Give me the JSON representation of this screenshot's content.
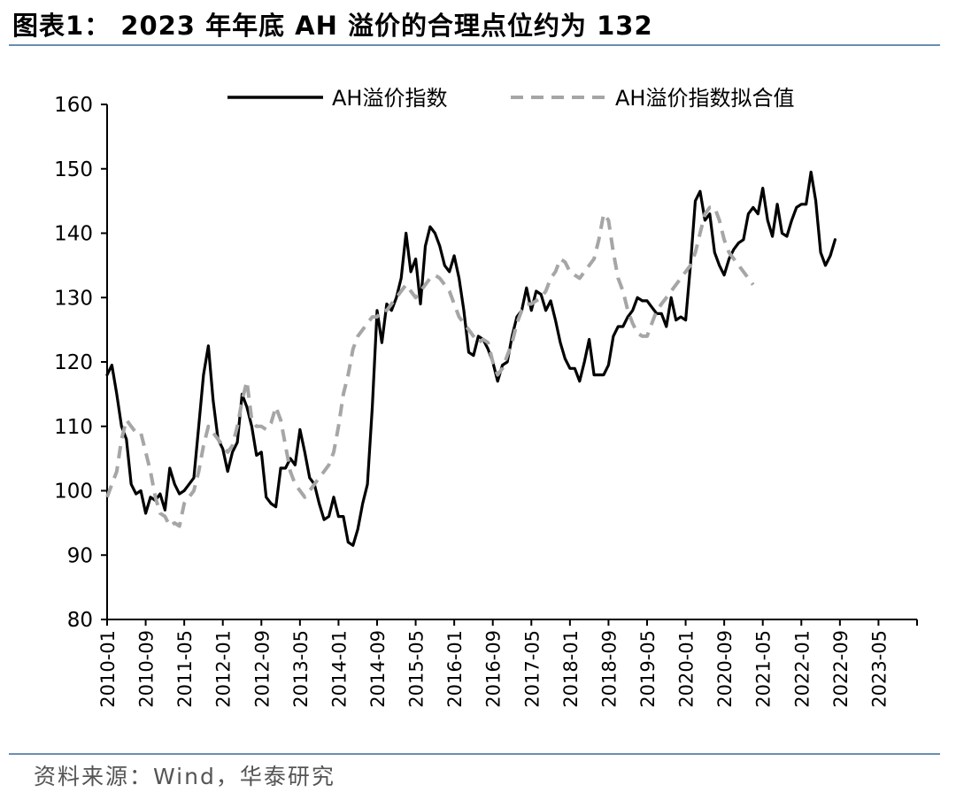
{
  "header": {
    "title": "图表1： 2023 年年底 AH 溢价的合理点位约为 132"
  },
  "footer": {
    "source": "资料来源：Wind，华泰研究"
  },
  "chart_data": {
    "type": "line",
    "title": "图表1： 2023 年年底 AH 溢价的合理点位约为 132",
    "ylim": [
      80,
      160
    ],
    "yticks": [
      80,
      90,
      100,
      110,
      120,
      130,
      140,
      150,
      160
    ],
    "xlim": [
      "2010-01",
      "2024-01"
    ],
    "xticks": [
      "2010-01",
      "2010-09",
      "2011-05",
      "2012-01",
      "2012-09",
      "2013-05",
      "2014-01",
      "2014-09",
      "2015-05",
      "2016-01",
      "2016-09",
      "2017-05",
      "2018-01",
      "2018-09",
      "2019-05",
      "2020-01",
      "2020-09",
      "2021-05",
      "2022-01",
      "2022-09",
      "2023-05"
    ],
    "legend_position": "top-center",
    "grid": false,
    "colors": {
      "actual": "#000000",
      "fitted": "#a6a6a6",
      "axis": "#000000",
      "rule": "#6a8eb3"
    },
    "series": [
      {
        "name": "AH溢价指数",
        "style": "solid",
        "points": [
          [
            "2010-01",
            118
          ],
          [
            "2010-02",
            119.5
          ],
          [
            "2010-03",
            115
          ],
          [
            "2010-04",
            110
          ],
          [
            "2010-05",
            108
          ],
          [
            "2010-06",
            101
          ],
          [
            "2010-07",
            99.5
          ],
          [
            "2010-08",
            100
          ],
          [
            "2010-09",
            96.5
          ],
          [
            "2010-10",
            99
          ],
          [
            "2010-11",
            98.5
          ],
          [
            "2010-12",
            99.5
          ],
          [
            "2011-01",
            97
          ],
          [
            "2011-02",
            103.5
          ],
          [
            "2011-03",
            101
          ],
          [
            "2011-04",
            99.5
          ],
          [
            "2011-05",
            100
          ],
          [
            "2011-06",
            101
          ],
          [
            "2011-07",
            102
          ],
          [
            "2011-08",
            110
          ],
          [
            "2011-09",
            118
          ],
          [
            "2011-10",
            122.5
          ],
          [
            "2011-11",
            114
          ],
          [
            "2011-12",
            108
          ],
          [
            "2012-01",
            106.5
          ],
          [
            "2012-02",
            103
          ],
          [
            "2012-03",
            106
          ],
          [
            "2012-04",
            107.5
          ],
          [
            "2012-05",
            115
          ],
          [
            "2012-06",
            113
          ],
          [
            "2012-07",
            110
          ],
          [
            "2012-08",
            105.5
          ],
          [
            "2012-09",
            106
          ],
          [
            "2012-10",
            99
          ],
          [
            "2012-11",
            98
          ],
          [
            "2012-12",
            97.5
          ],
          [
            "2013-01",
            103.5
          ],
          [
            "2013-02",
            103.5
          ],
          [
            "2013-03",
            105
          ],
          [
            "2013-04",
            104
          ],
          [
            "2013-05",
            109.5
          ],
          [
            "2013-06",
            106
          ],
          [
            "2013-07",
            102
          ],
          [
            "2013-08",
            101
          ],
          [
            "2013-09",
            98
          ],
          [
            "2013-10",
            95.5
          ],
          [
            "2013-11",
            96
          ],
          [
            "2013-12",
            99
          ],
          [
            "2014-01",
            96
          ],
          [
            "2014-02",
            96
          ],
          [
            "2014-03",
            92
          ],
          [
            "2014-04",
            91.5
          ],
          [
            "2014-05",
            94
          ],
          [
            "2014-06",
            98
          ],
          [
            "2014-07",
            101
          ],
          [
            "2014-08",
            113
          ],
          [
            "2014-09",
            128
          ],
          [
            "2014-10",
            123
          ],
          [
            "2014-11",
            129
          ],
          [
            "2014-12",
            128
          ],
          [
            "2015-01",
            130
          ],
          [
            "2015-02",
            133
          ],
          [
            "2015-03",
            140
          ],
          [
            "2015-04",
            134
          ],
          [
            "2015-05",
            136
          ],
          [
            "2015-06",
            129
          ],
          [
            "2015-07",
            138
          ],
          [
            "2015-08",
            141
          ],
          [
            "2015-09",
            140
          ],
          [
            "2015-10",
            138
          ],
          [
            "2015-11",
            135
          ],
          [
            "2015-12",
            134
          ],
          [
            "2016-01",
            136.5
          ],
          [
            "2016-02",
            133
          ],
          [
            "2016-03",
            128
          ],
          [
            "2016-04",
            121.5
          ],
          [
            "2016-05",
            121
          ],
          [
            "2016-06",
            124
          ],
          [
            "2016-07",
            123.5
          ],
          [
            "2016-08",
            122
          ],
          [
            "2016-09",
            120
          ],
          [
            "2016-10",
            117
          ],
          [
            "2016-11",
            119.5
          ],
          [
            "2016-12",
            120
          ],
          [
            "2017-01",
            124
          ],
          [
            "2017-02",
            127
          ],
          [
            "2017-03",
            128
          ],
          [
            "2017-04",
            131.5
          ],
          [
            "2017-05",
            128
          ],
          [
            "2017-06",
            131
          ],
          [
            "2017-07",
            130.5
          ],
          [
            "2017-08",
            128
          ],
          [
            "2017-09",
            129.5
          ],
          [
            "2017-10",
            126.5
          ],
          [
            "2017-11",
            123
          ],
          [
            "2017-12",
            120.5
          ],
          [
            "2018-01",
            119
          ],
          [
            "2018-02",
            119
          ],
          [
            "2018-03",
            117
          ],
          [
            "2018-04",
            120
          ],
          [
            "2018-05",
            123.5
          ],
          [
            "2018-06",
            118
          ],
          [
            "2018-07",
            118
          ],
          [
            "2018-08",
            118
          ],
          [
            "2018-09",
            119.5
          ],
          [
            "2018-10",
            124
          ],
          [
            "2018-11",
            125.5
          ],
          [
            "2018-12",
            125.5
          ],
          [
            "2019-01",
            127
          ],
          [
            "2019-02",
            128
          ],
          [
            "2019-03",
            130
          ],
          [
            "2019-04",
            129.5
          ],
          [
            "2019-05",
            129.5
          ],
          [
            "2019-06",
            128.5
          ],
          [
            "2019-07",
            127.5
          ],
          [
            "2019-08",
            127.5
          ],
          [
            "2019-09",
            125.5
          ],
          [
            "2019-10",
            130
          ],
          [
            "2019-11",
            126.5
          ],
          [
            "2019-12",
            127
          ],
          [
            "2020-01",
            126.5
          ],
          [
            "2020-02",
            135
          ],
          [
            "2020-03",
            145
          ],
          [
            "2020-04",
            146.5
          ],
          [
            "2020-05",
            142
          ],
          [
            "2020-06",
            143
          ],
          [
            "2020-07",
            137
          ],
          [
            "2020-08",
            135
          ],
          [
            "2020-09",
            133.5
          ],
          [
            "2020-10",
            136
          ],
          [
            "2020-11",
            137.5
          ],
          [
            "2020-12",
            138.5
          ],
          [
            "2021-01",
            139
          ],
          [
            "2021-02",
            143
          ],
          [
            "2021-03",
            144
          ],
          [
            "2021-04",
            143
          ],
          [
            "2021-05",
            147
          ],
          [
            "2021-06",
            142
          ],
          [
            "2021-07",
            139.5
          ],
          [
            "2021-08",
            144.5
          ],
          [
            "2021-09",
            140
          ],
          [
            "2021-10",
            139.5
          ],
          [
            "2021-11",
            142
          ],
          [
            "2021-12",
            144
          ],
          [
            "2022-01",
            144.5
          ],
          [
            "2022-02",
            144.5
          ],
          [
            "2022-03",
            149.5
          ],
          [
            "2022-04",
            145
          ],
          [
            "2022-05",
            137
          ],
          [
            "2022-06",
            135
          ],
          [
            "2022-07",
            136.5
          ],
          [
            "2022-08",
            139
          ]
        ]
      },
      {
        "name": "AH溢价指数拟合值",
        "style": "dashed",
        "points": [
          [
            "2010-01",
            99
          ],
          [
            "2010-02",
            101
          ],
          [
            "2010-03",
            103
          ],
          [
            "2010-04",
            108
          ],
          [
            "2010-05",
            111
          ],
          [
            "2010-06",
            110
          ],
          [
            "2010-07",
            109
          ],
          [
            "2010-08",
            109
          ],
          [
            "2010-09",
            106
          ],
          [
            "2010-10",
            103
          ],
          [
            "2010-11",
            99
          ],
          [
            "2010-12",
            96.5
          ],
          [
            "2011-01",
            96
          ],
          [
            "2011-02",
            94.5
          ],
          [
            "2011-03",
            95
          ],
          [
            "2011-04",
            94.5
          ],
          [
            "2011-05",
            98
          ],
          [
            "2011-06",
            99
          ],
          [
            "2011-07",
            100
          ],
          [
            "2011-08",
            103
          ],
          [
            "2011-09",
            107
          ],
          [
            "2011-10",
            110
          ],
          [
            "2011-11",
            109
          ],
          [
            "2011-12",
            108
          ],
          [
            "2012-01",
            107
          ],
          [
            "2012-02",
            106
          ],
          [
            "2012-03",
            107
          ],
          [
            "2012-04",
            110
          ],
          [
            "2012-05",
            114
          ],
          [
            "2012-06",
            117
          ],
          [
            "2012-07",
            111
          ],
          [
            "2012-08",
            110
          ],
          [
            "2012-09",
            110
          ],
          [
            "2012-10",
            109.5
          ],
          [
            "2012-11",
            110.5
          ],
          [
            "2012-12",
            113
          ],
          [
            "2013-01",
            111
          ],
          [
            "2013-02",
            107
          ],
          [
            "2013-03",
            103
          ],
          [
            "2013-04",
            101
          ],
          [
            "2013-05",
            100
          ],
          [
            "2013-06",
            99
          ],
          [
            "2013-07",
            100
          ],
          [
            "2013-08",
            101
          ],
          [
            "2013-09",
            102
          ],
          [
            "2013-10",
            103
          ],
          [
            "2013-11",
            104
          ],
          [
            "2013-12",
            106
          ],
          [
            "2014-01",
            110
          ],
          [
            "2014-02",
            115
          ],
          [
            "2014-03",
            118
          ],
          [
            "2014-04",
            122
          ],
          [
            "2014-05",
            124
          ],
          [
            "2014-06",
            125
          ],
          [
            "2014-07",
            126
          ],
          [
            "2014-08",
            127
          ],
          [
            "2014-09",
            127
          ],
          [
            "2014-10",
            128
          ],
          [
            "2014-11",
            128
          ],
          [
            "2014-12",
            129
          ],
          [
            "2015-01",
            130
          ],
          [
            "2015-02",
            131
          ],
          [
            "2015-03",
            132
          ],
          [
            "2015-04",
            131
          ],
          [
            "2015-05",
            130
          ],
          [
            "2015-06",
            131
          ],
          [
            "2015-07",
            132
          ],
          [
            "2015-08",
            133
          ],
          [
            "2015-09",
            133.5
          ],
          [
            "2015-10",
            133
          ],
          [
            "2015-11",
            132
          ],
          [
            "2015-12",
            131
          ],
          [
            "2016-01",
            129
          ],
          [
            "2016-02",
            127
          ],
          [
            "2016-03",
            126
          ],
          [
            "2016-04",
            125
          ],
          [
            "2016-05",
            124
          ],
          [
            "2016-06",
            123
          ],
          [
            "2016-07",
            123.5
          ],
          [
            "2016-08",
            123
          ],
          [
            "2016-09",
            120
          ],
          [
            "2016-10",
            118
          ],
          [
            "2016-11",
            119
          ],
          [
            "2016-12",
            121
          ],
          [
            "2017-01",
            123
          ],
          [
            "2017-02",
            126
          ],
          [
            "2017-03",
            128
          ],
          [
            "2017-04",
            129
          ],
          [
            "2017-05",
            129
          ],
          [
            "2017-06",
            129.5
          ],
          [
            "2017-07",
            130
          ],
          [
            "2017-08",
            131
          ],
          [
            "2017-09",
            133
          ],
          [
            "2017-10",
            134
          ],
          [
            "2017-11",
            136
          ],
          [
            "2017-12",
            135.5
          ],
          [
            "2018-01",
            134
          ],
          [
            "2018-02",
            133.5
          ],
          [
            "2018-03",
            133
          ],
          [
            "2018-04",
            134
          ],
          [
            "2018-05",
            135
          ],
          [
            "2018-06",
            136
          ],
          [
            "2018-07",
            139
          ],
          [
            "2018-08",
            143
          ],
          [
            "2018-09",
            142
          ],
          [
            "2018-10",
            137
          ],
          [
            "2018-11",
            133
          ],
          [
            "2018-12",
            131
          ],
          [
            "2019-01",
            128
          ],
          [
            "2019-02",
            126
          ],
          [
            "2019-03",
            124.5
          ],
          [
            "2019-04",
            124
          ],
          [
            "2019-05",
            124
          ],
          [
            "2019-06",
            126
          ],
          [
            "2019-07",
            128
          ],
          [
            "2019-08",
            129
          ],
          [
            "2019-09",
            130
          ],
          [
            "2019-10",
            131
          ],
          [
            "2019-11",
            132
          ],
          [
            "2019-12",
            133
          ],
          [
            "2020-01",
            134
          ],
          [
            "2020-02",
            135
          ],
          [
            "2020-03",
            137
          ],
          [
            "2020-04",
            140
          ],
          [
            "2020-05",
            143
          ],
          [
            "2020-06",
            144
          ],
          [
            "2020-07",
            144
          ],
          [
            "2020-08",
            142
          ],
          [
            "2020-09",
            139
          ],
          [
            "2020-10",
            137
          ],
          [
            "2020-11",
            136
          ],
          [
            "2020-12",
            135
          ],
          [
            "2021-01",
            134
          ],
          [
            "2021-02",
            133
          ],
          [
            "2021-03",
            132
          ]
        ]
      }
    ]
  }
}
